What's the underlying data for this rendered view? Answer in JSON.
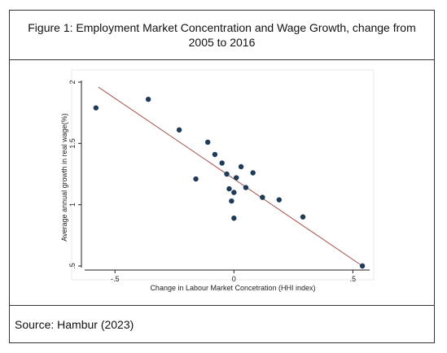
{
  "figure": {
    "title": "Figure 1: Employment Market Concentration and Wage Growth, change from 2005 to 2016",
    "source": "Source: Hambur (2023)"
  },
  "chart_data": {
    "type": "scatter",
    "xlabel": "Change in Labour Market Concetration (HHI index)",
    "ylabel": "Average annual growth in real wage(%)",
    "xlim": [
      -0.6,
      0.55
    ],
    "ylim": [
      0.5,
      2.0
    ],
    "x_ticks": [
      -0.5,
      0,
      0.5
    ],
    "x_tick_labels": [
      "-.5",
      "0",
      ".5"
    ],
    "y_ticks": [
      0.5,
      1,
      1.5,
      2
    ],
    "y_tick_labels": [
      ".5",
      "1",
      "1.5",
      "2"
    ],
    "grid": false,
    "legend": "none",
    "colors": {
      "points": "#1f3b57",
      "fit_line": "#a0504a"
    },
    "points": [
      {
        "x": -0.58,
        "y": 1.79
      },
      {
        "x": -0.36,
        "y": 1.86
      },
      {
        "x": -0.23,
        "y": 1.61
      },
      {
        "x": -0.16,
        "y": 1.21
      },
      {
        "x": -0.11,
        "y": 1.51
      },
      {
        "x": -0.08,
        "y": 1.41
      },
      {
        "x": -0.05,
        "y": 1.34
      },
      {
        "x": -0.03,
        "y": 1.25
      },
      {
        "x": -0.02,
        "y": 1.13
      },
      {
        "x": -0.01,
        "y": 1.03
      },
      {
        "x": 0.0,
        "y": 1.1
      },
      {
        "x": 0.0,
        "y": 0.89
      },
      {
        "x": 0.01,
        "y": 1.22
      },
      {
        "x": 0.03,
        "y": 1.31
      },
      {
        "x": 0.05,
        "y": 1.14
      },
      {
        "x": 0.08,
        "y": 1.26
      },
      {
        "x": 0.12,
        "y": 1.06
      },
      {
        "x": 0.19,
        "y": 1.04
      },
      {
        "x": 0.29,
        "y": 0.9
      },
      {
        "x": 0.54,
        "y": 0.5
      }
    ],
    "fit_line": {
      "x": [
        -0.57,
        0.54
      ],
      "y": [
        1.96,
        0.5
      ]
    }
  }
}
